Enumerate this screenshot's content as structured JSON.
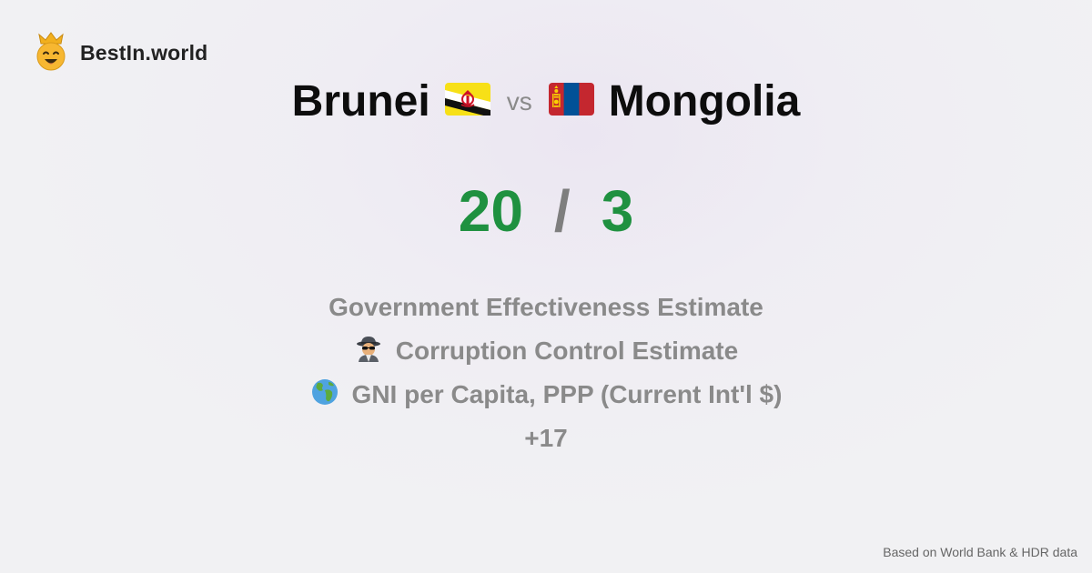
{
  "brand": {
    "name": "BestIn.world",
    "logo_icon": "crown-smiley-icon"
  },
  "comparison": {
    "left": {
      "country": "Brunei",
      "flag_icon": "brunei-flag-icon",
      "score": "20"
    },
    "vs_label": "vs",
    "right": {
      "country": "Mongolia",
      "flag_icon": "mongolia-flag-icon",
      "score": "3"
    },
    "separator": "/"
  },
  "metrics": [
    {
      "label": "Government Effectiveness Estimate",
      "icon": null
    },
    {
      "label": "Corruption Control Estimate",
      "icon": "spy-icon"
    },
    {
      "label": "GNI per Capita, PPP (Current Int'l $)",
      "icon": "globe-icon"
    }
  ],
  "more_label": "+17",
  "footer": {
    "source": "Based on World Bank & HDR data"
  },
  "colors": {
    "score_green": "#1f9140",
    "muted_gray": "#8a8a8a"
  }
}
